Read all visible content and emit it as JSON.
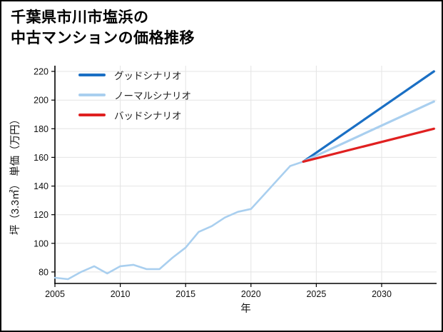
{
  "title": {
    "line1": "千葉県市川市塩浜の",
    "line2": "中古マンションの価格推移"
  },
  "legend": [
    {
      "label": "グッドシナリオ",
      "color": "#1a6fc4"
    },
    {
      "label": "ノーマルシナリオ",
      "color": "#a9cfef"
    },
    {
      "label": "バッドシナリオ",
      "color": "#e02020"
    }
  ],
  "chart_data": {
    "type": "line",
    "title": "千葉県市川市塩浜の中古マンションの価格推移",
    "xlabel": "年",
    "ylabel": "坪（3.3㎡） 単価（万円）",
    "xlim": [
      2005,
      2034.2
    ],
    "ylim": [
      72,
      224
    ],
    "xticks": [
      2005,
      2010,
      2015,
      2020,
      2025,
      2030
    ],
    "yticks": [
      80,
      100,
      120,
      140,
      160,
      180,
      200,
      220
    ],
    "grid": true,
    "legend_position": "upper-left-inside",
    "series": [
      {
        "name": "history",
        "color": "#a9cfef",
        "width": 2.6,
        "x": [
          2005,
          2006,
          2007,
          2008,
          2009,
          2010,
          2011,
          2012,
          2013,
          2014,
          2015,
          2016,
          2017,
          2018,
          2019,
          2020,
          2021,
          2022,
          2023,
          2024
        ],
        "values": [
          76,
          75,
          80,
          84,
          79,
          84,
          85,
          82,
          82,
          90,
          97,
          108,
          112,
          118,
          122,
          124,
          134,
          144,
          154,
          157
        ]
      },
      {
        "name": "good-scenario",
        "color": "#1a6fc4",
        "width": 3.2,
        "x": [
          2024,
          2034
        ],
        "values": [
          157,
          220
        ]
      },
      {
        "name": "normal-scenario",
        "color": "#a9cfef",
        "width": 3.2,
        "x": [
          2024,
          2034
        ],
        "values": [
          157,
          199
        ]
      },
      {
        "name": "bad-scenario",
        "color": "#e02020",
        "width": 3.2,
        "x": [
          2024,
          2034
        ],
        "values": [
          157,
          180
        ]
      }
    ]
  }
}
